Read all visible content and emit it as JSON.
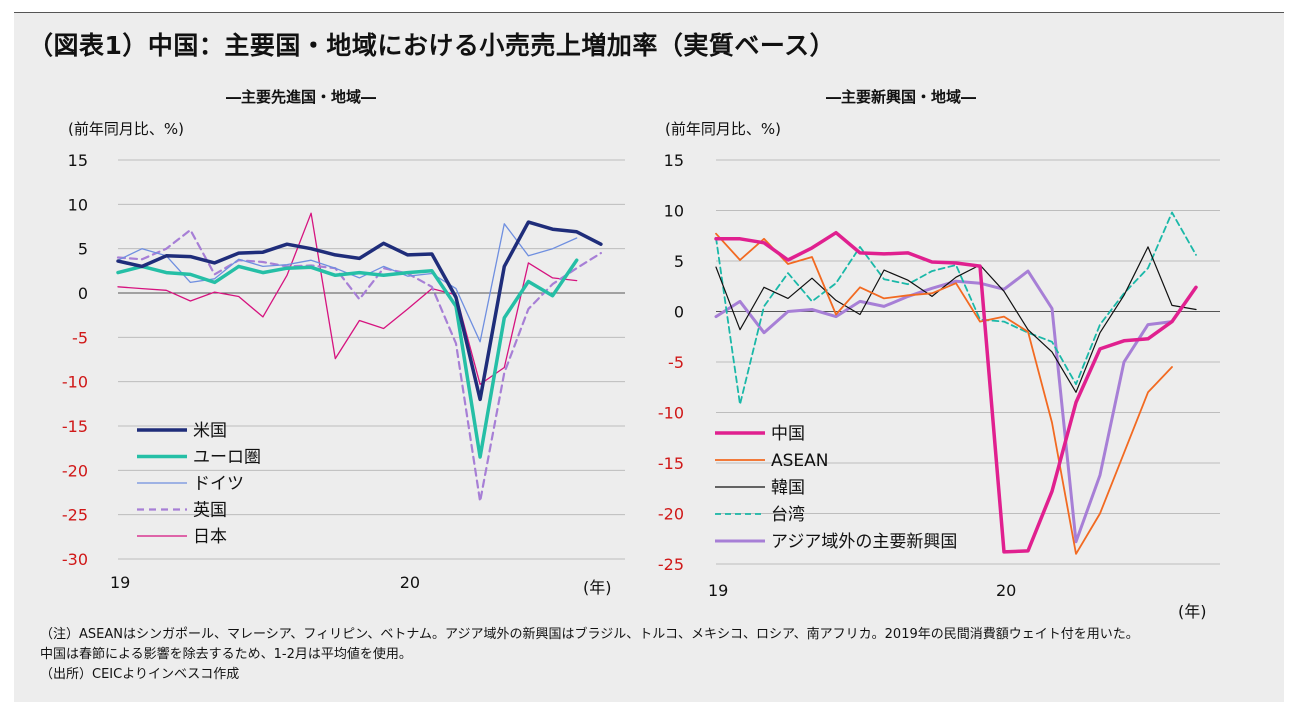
{
  "title": "（図表1）中国：主要国・地域における小売売上増加率（実質ベース）",
  "notes": [
    "（注）ASEANはシンガポール、マレーシア、フィリピン、ベトナム。アジア域外の新興国はブラジル、トルコ、メキシコ、ロシア、南アフリカ。2019年の民間消費額ウェイト付を用いた。",
    "中国は春節による影響を除去するため、1-2月は平均値を使用。",
    "（出所）CEICよりインベスコ作成"
  ],
  "chart_data": [
    {
      "type": "line",
      "title": "―主要先進国・地域―",
      "ylabel": "(前年同月比、%)",
      "xlabel": "(年)",
      "ylim": [
        -30,
        15
      ],
      "yticks": [
        15,
        10,
        5,
        0,
        -5,
        -10,
        -15,
        -20,
        -25,
        -30
      ],
      "ytick_labels": [
        "15",
        "10",
        "5",
        "0",
        "-5",
        "-10",
        "-15",
        "-20",
        "-25",
        "-30"
      ],
      "x_months": 22,
      "x_tick_labels": [
        {
          "index": 0,
          "label": "19"
        },
        {
          "index": 12,
          "label": "20"
        }
      ],
      "legend_position": "lower-left",
      "series": [
        {
          "name": "米国",
          "color": "#1f2d7a",
          "width": 3.5,
          "dash": "",
          "values": [
            3.6,
            3.0,
            4.2,
            4.1,
            3.4,
            4.5,
            4.6,
            5.5,
            5.0,
            4.3,
            3.9,
            5.6,
            4.3,
            4.4,
            -0.5,
            -12.0,
            3.0,
            8.0,
            7.2,
            6.9,
            5.5
          ]
        },
        {
          "name": "ユーロ圏",
          "color": "#25bfa6",
          "width": 3.5,
          "dash": "",
          "values": [
            2.3,
            3.0,
            2.3,
            2.1,
            1.2,
            3.0,
            2.3,
            2.8,
            2.9,
            2.0,
            2.3,
            2.0,
            2.3,
            2.5,
            -1.5,
            -18.5,
            -2.8,
            1.3,
            -0.3,
            3.7
          ]
        },
        {
          "name": "ドイツ",
          "color": "#6f8fe0",
          "width": 1.3,
          "dash": "",
          "values": [
            3.7,
            5.0,
            4.2,
            1.2,
            1.6,
            3.8,
            3.0,
            3.2,
            3.7,
            2.8,
            1.7,
            3.0,
            1.9,
            2.2,
            0.5,
            -5.5,
            7.8,
            4.2,
            5.0,
            6.2
          ]
        },
        {
          "name": "英国",
          "color": "#a77fd6",
          "width": 2.2,
          "dash": "7,5",
          "values": [
            4.0,
            3.8,
            5.0,
            7.1,
            2.1,
            3.7,
            3.5,
            3.0,
            3.1,
            2.8,
            -0.7,
            2.8,
            2.2,
            0.7,
            -5.7,
            -23.5,
            -9.0,
            -1.8,
            1.0,
            2.8,
            4.5
          ]
        },
        {
          "name": "日本",
          "color": "#d6137f",
          "width": 1.3,
          "dash": "",
          "values": [
            0.7,
            0.5,
            0.3,
            -0.9,
            0.1,
            -0.4,
            -2.7,
            2.0,
            9.0,
            -7.4,
            -3.1,
            -4.0,
            -1.8,
            0.5,
            -0.2,
            -10.3,
            -8.4,
            3.4,
            1.7,
            1.4
          ]
        }
      ]
    },
    {
      "type": "line",
      "title": "―主要新興国・地域―",
      "ylabel": "(前年同月比、%)",
      "xlabel": "(年)",
      "ylim": [
        -25,
        15
      ],
      "yticks": [
        15,
        10,
        5,
        0,
        -5,
        -10,
        -15,
        -20,
        -25
      ],
      "ytick_labels": [
        "15",
        "10",
        "5",
        "0",
        "-5",
        "-10",
        "-15",
        "-20",
        "-25"
      ],
      "x_months": 22,
      "x_tick_labels": [
        {
          "index": 0,
          "label": "19"
        },
        {
          "index": 12,
          "label": "20"
        }
      ],
      "legend_position": "lower-left",
      "series": [
        {
          "name": "中国",
          "color": "#e0208f",
          "width": 3.5,
          "dash": "",
          "values": [
            7.2,
            7.2,
            6.8,
            5.1,
            6.3,
            7.8,
            5.8,
            5.7,
            5.8,
            4.9,
            4.8,
            4.5,
            -23.8,
            -23.7,
            -17.8,
            -9.0,
            -3.7,
            -2.9,
            -2.7,
            -1.0,
            2.4
          ]
        },
        {
          "name": "ASEAN",
          "color": "#f26a21",
          "width": 1.8,
          "dash": "",
          "values": [
            7.7,
            5.1,
            7.2,
            4.7,
            5.4,
            -0.3,
            2.4,
            1.3,
            1.6,
            1.8,
            2.8,
            -1.0,
            -0.5,
            -2.0,
            -11.0,
            -24.0,
            -20.0,
            -14.0,
            -8.0,
            -5.5
          ]
        },
        {
          "name": "韓国",
          "color": "#111111",
          "width": 1.2,
          "dash": "",
          "values": [
            4.4,
            -1.8,
            2.4,
            1.3,
            3.3,
            1.1,
            -0.3,
            4.1,
            3.1,
            1.5,
            3.4,
            4.6,
            2.0,
            -1.8,
            -4.0,
            -8.0,
            -2.1,
            1.6,
            6.4,
            0.6,
            0.2
          ]
        },
        {
          "name": "台湾",
          "color": "#1ab8a8",
          "width": 1.8,
          "dash": "6,4",
          "values": [
            7.3,
            -9.2,
            0.5,
            3.8,
            1.0,
            2.8,
            6.4,
            3.2,
            2.7,
            4.0,
            4.6,
            -0.8,
            -1.0,
            -2.1,
            -3.0,
            -7.2,
            -1.3,
            1.8,
            4.3,
            9.8,
            5.6
          ]
        },
        {
          "name": "アジア域外の主要新興国",
          "color": "#a77fd6",
          "width": 3.0,
          "dash": "",
          "values": [
            -0.5,
            1.0,
            -2.1,
            0.0,
            0.2,
            -0.5,
            1.0,
            0.5,
            1.5,
            2.3,
            3.0,
            2.8,
            2.2,
            4.0,
            0.3,
            -22.8,
            -16.2,
            -5.0,
            -1.3,
            -1.0
          ]
        }
      ]
    }
  ]
}
